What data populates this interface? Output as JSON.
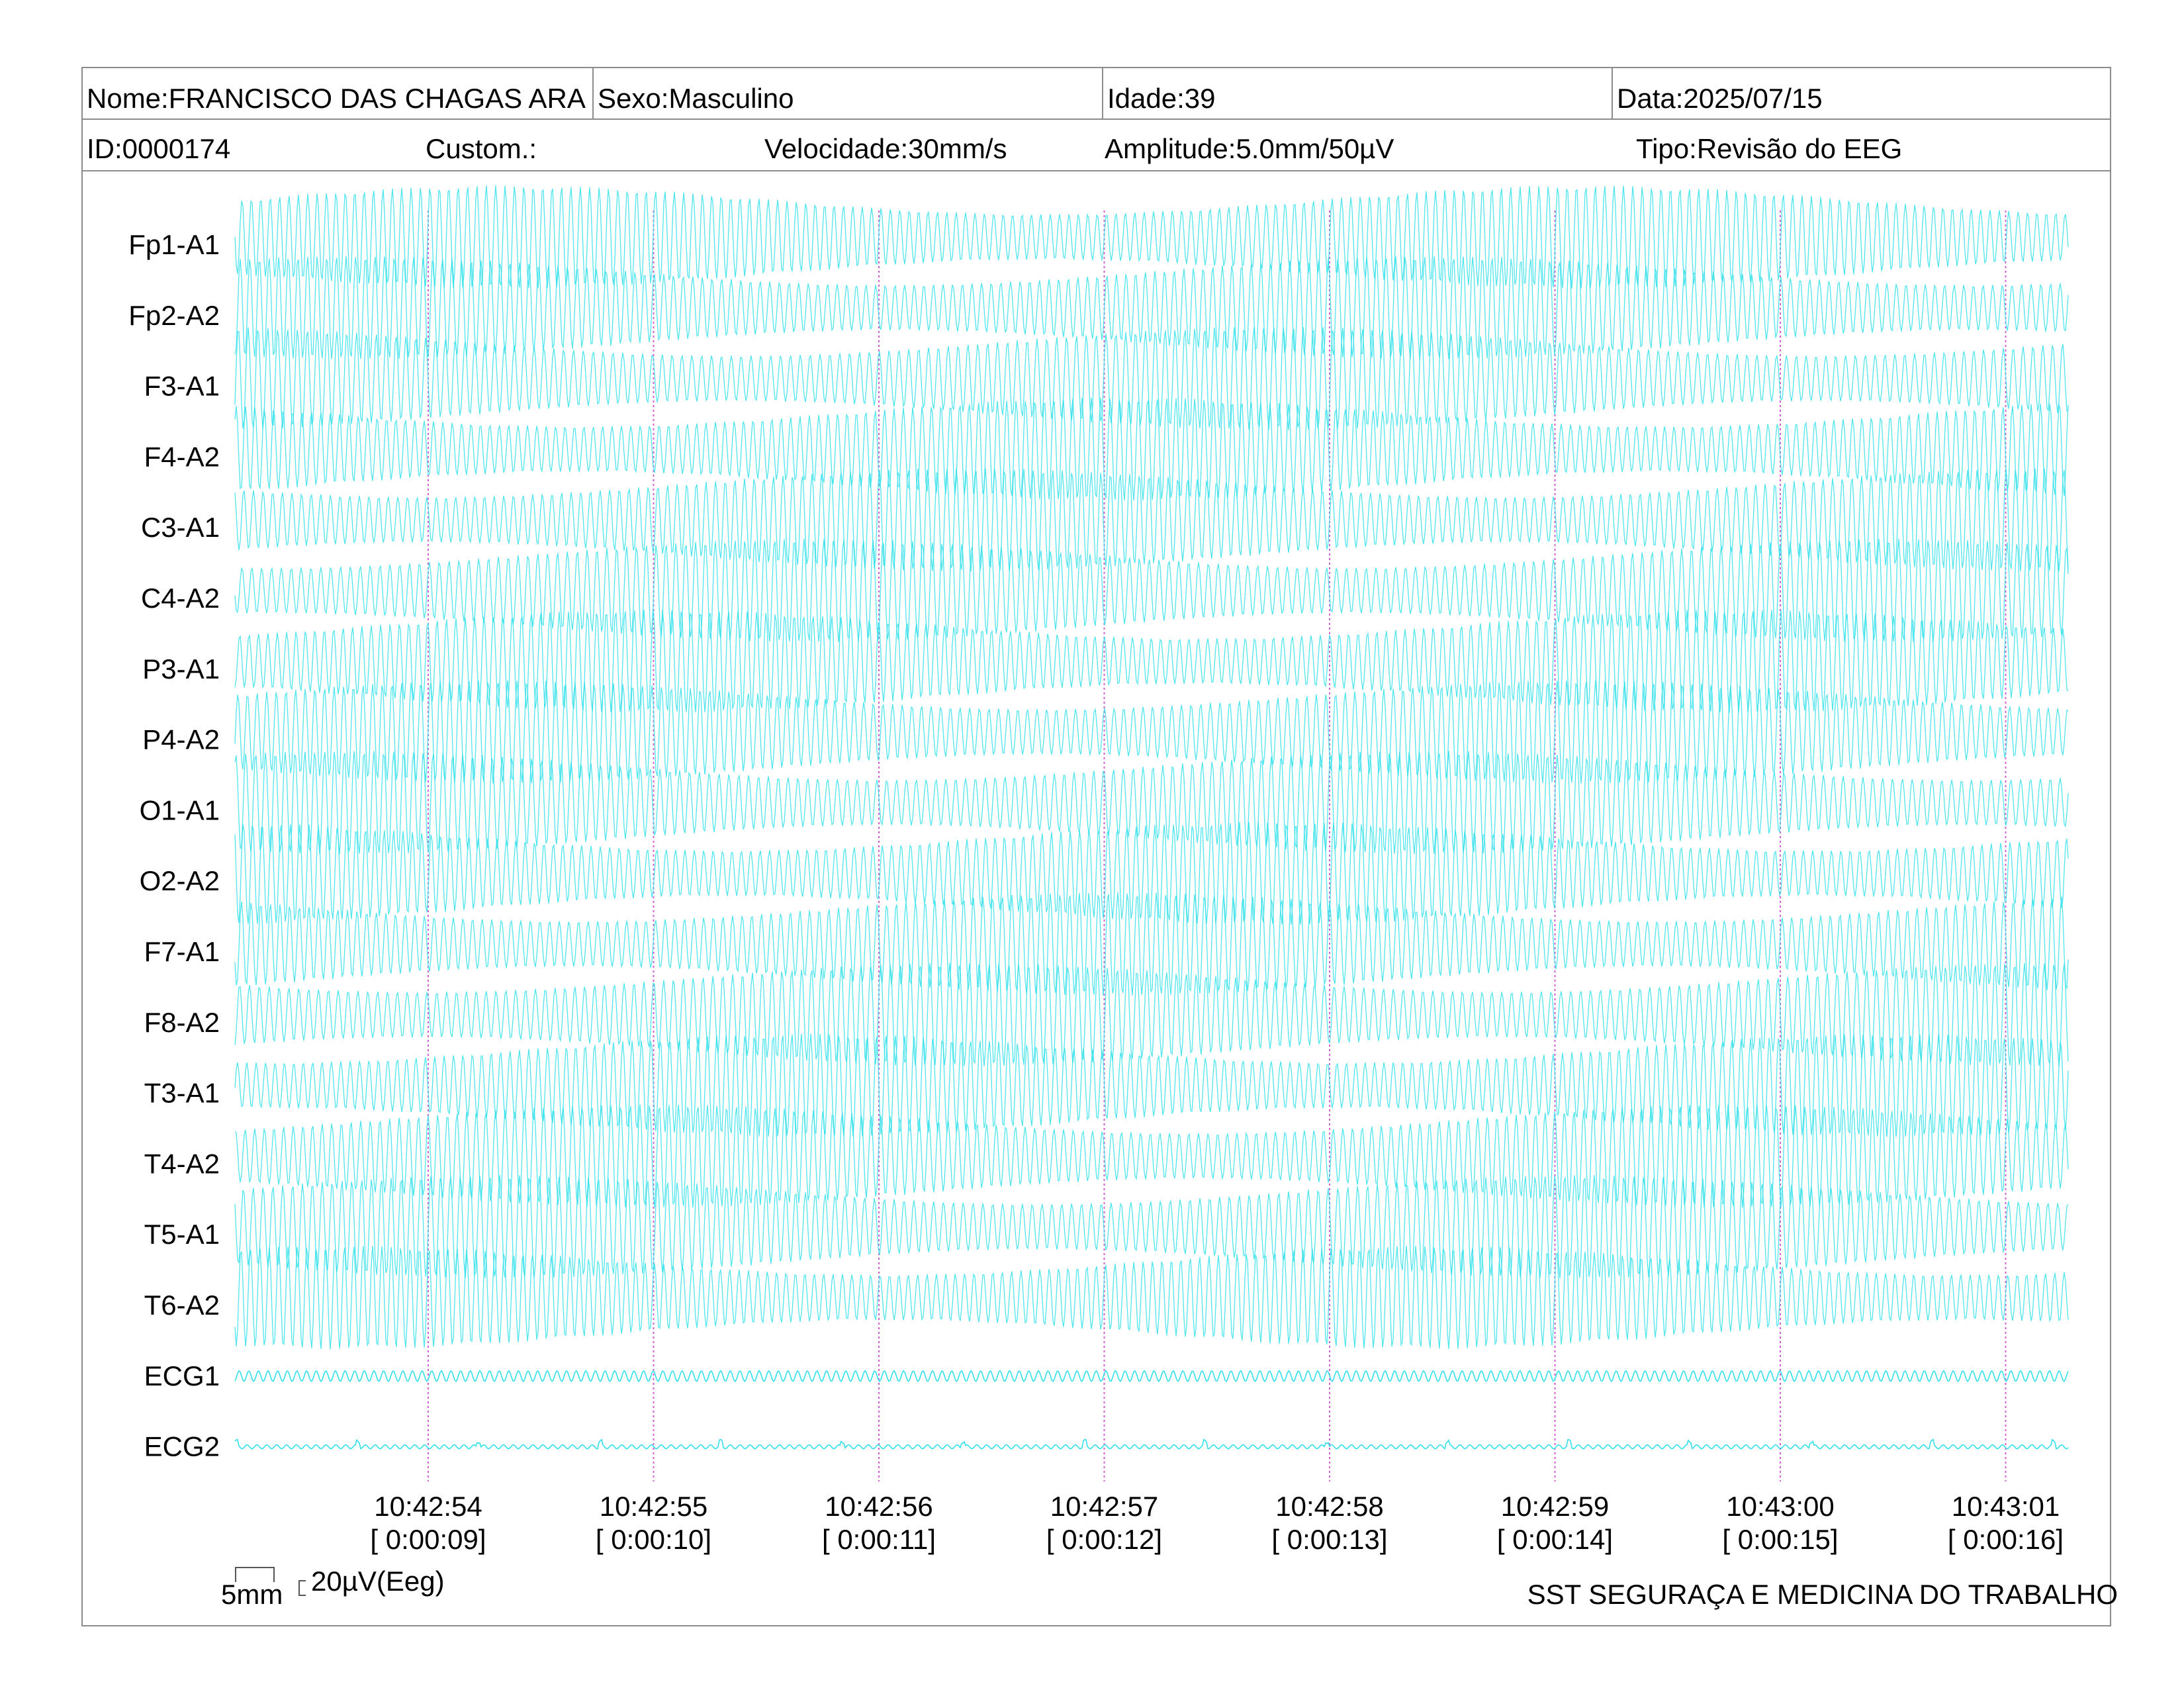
{
  "header": {
    "nome": "Nome:FRANCISCO DAS CHAGAS ARA",
    "sexo": "Sexo:Masculino",
    "idade": "Idade:39",
    "data": "Data:2025/07/15",
    "id": "ID:0000174",
    "custom": "Custom.:",
    "velocidade": "Velocidade:30mm/s",
    "amplitude": "Amplitude:5.0mm/50µV",
    "tipo": "Tipo:Revisão do EEG"
  },
  "scale": {
    "mm_label": "5mm",
    "uv_label": "20µV(Eeg)"
  },
  "footer": "SST SEGURAÇA E MEDICINA DO TRABALHO",
  "colors": {
    "trace": "#33e0ea",
    "marker": "#d65bd6",
    "border": "#8c8c8c"
  },
  "chart_data": {
    "type": "line",
    "channels": [
      "Fp1-A1",
      "Fp2-A2",
      "F3-A1",
      "F4-A2",
      "C3-A1",
      "C4-A2",
      "P3-A1",
      "P4-A2",
      "O1-A1",
      "O2-A2",
      "F7-A1",
      "F8-A2",
      "T3-A1",
      "T4-A2",
      "T5-A1",
      "T6-A2",
      "ECG1",
      "ECG2"
    ],
    "time_ticks": [
      {
        "clock": "10:42:54",
        "elapsed": "[ 0:00:09]"
      },
      {
        "clock": "10:42:55",
        "elapsed": "[ 0:00:10]"
      },
      {
        "clock": "10:42:56",
        "elapsed": "[ 0:00:11]"
      },
      {
        "clock": "10:42:57",
        "elapsed": "[ 0:00:12]"
      },
      {
        "clock": "10:42:58",
        "elapsed": "[ 0:00:13]"
      },
      {
        "clock": "10:42:59",
        "elapsed": "[ 0:00:14]"
      },
      {
        "clock": "10:43:00",
        "elapsed": "[ 0:00:15]"
      },
      {
        "clock": "10:43:01",
        "elapsed": "[ 0:00:16]"
      }
    ],
    "speed_mm_s": 30,
    "amplitude_mm_per_50uV": 5.0,
    "grid": false
  }
}
